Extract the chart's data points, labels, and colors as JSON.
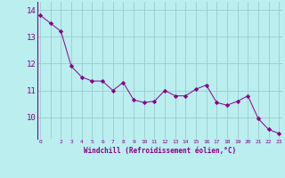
{
  "x": [
    0,
    1,
    2,
    3,
    4,
    5,
    6,
    7,
    8,
    9,
    10,
    11,
    12,
    13,
    14,
    15,
    16,
    17,
    18,
    19,
    20,
    21,
    22,
    23
  ],
  "y": [
    13.8,
    13.5,
    13.2,
    11.9,
    11.5,
    11.35,
    11.35,
    11.0,
    11.3,
    10.65,
    10.55,
    10.6,
    11.0,
    10.8,
    10.8,
    11.05,
    11.2,
    10.55,
    10.45,
    10.6,
    10.8,
    9.95,
    9.55,
    9.4
  ],
  "line_color": "#880088",
  "marker_color": "#880088",
  "bg_color": "#bbeeee",
  "grid_color": "#99cccc",
  "xlabel": "Windchill (Refroidissement éolien,°C)",
  "tick_color": "#880088",
  "ylim": [
    9.2,
    14.3
  ],
  "yticks": [
    10,
    11,
    12,
    13,
    14
  ],
  "xtick_labels": [
    "0",
    "",
    "2",
    "3",
    "4",
    "5",
    "6",
    "7",
    "8",
    "9",
    "10",
    "11",
    "12",
    "13",
    "14",
    "15",
    "16",
    "17",
    "18",
    "19",
    "20",
    "21",
    "22",
    "23"
  ]
}
